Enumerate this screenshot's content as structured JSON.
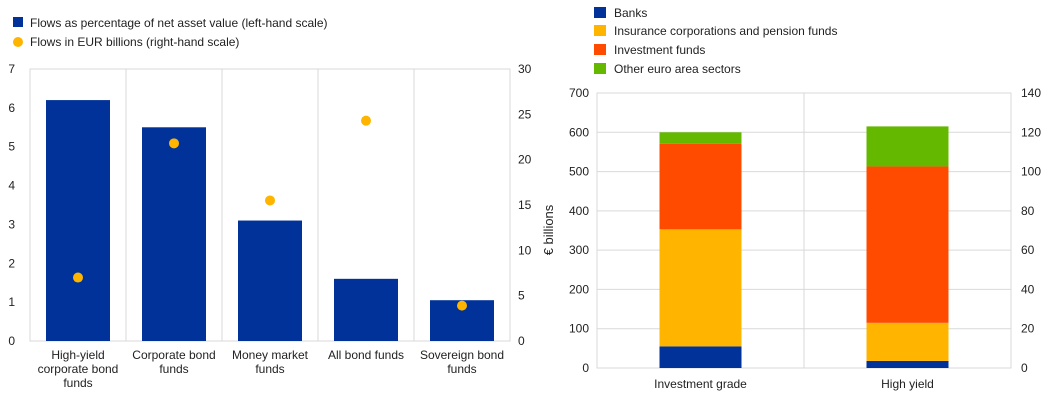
{
  "colors": {
    "navy": "#003299",
    "yellow": "#FFB400",
    "orange": "#FF4B00",
    "green": "#65B800",
    "grid": "#d9d9d9"
  },
  "chart_data": [
    {
      "type": "bar",
      "categories": [
        "High-yield corporate bond funds",
        "Corporate bond funds",
        "Money market funds",
        "All bond funds",
        "Sovereign bond funds"
      ],
      "category_lines": [
        [
          "High-yield",
          "corporate bond",
          "funds"
        ],
        [
          "Corporate bond",
          "funds"
        ],
        [
          "Money market",
          "funds"
        ],
        [
          "All bond funds"
        ],
        [
          "Sovereign bond",
          "funds"
        ]
      ],
      "series": [
        {
          "name": "Flows as percentage  of net asset value (left-hand scale)",
          "kind": "bar",
          "axis": "left",
          "color": "#003299",
          "values": [
            6.2,
            5.5,
            3.1,
            1.6,
            1.05
          ]
        },
        {
          "name": "Flows in EUR billions (right-hand scale)",
          "kind": "marker",
          "axis": "right",
          "color": "#FFB400",
          "values": [
            7.0,
            21.8,
            15.5,
            24.3,
            3.9
          ]
        }
      ],
      "ylim_left": [
        0,
        7
      ],
      "yticks_left": [
        "0",
        "1",
        "2",
        "3",
        "4",
        "5",
        "6",
        "7"
      ],
      "ylim_right": [
        0,
        30
      ],
      "yticks_right": [
        "0",
        "5",
        "10",
        "15",
        "20",
        "25",
        "30"
      ],
      "legend_position": "top-left"
    },
    {
      "type": "bar",
      "stacked": true,
      "categories": [
        "Investment grade",
        "High yield"
      ],
      "series": [
        {
          "name": "Banks",
          "color": "#003299",
          "values": [
            55,
            18
          ]
        },
        {
          "name": "Insurance corporations and pension funds",
          "color": "#FFB400",
          "values": [
            298,
            97
          ]
        },
        {
          "name": "Investment funds",
          "color": "#FF4B00",
          "values": [
            218,
            398
          ]
        },
        {
          "name": "Other euro area sectors",
          "color": "#65B800",
          "values": [
            29,
            102
          ]
        }
      ],
      "ylabel": "€ billions",
      "ylim": [
        0,
        700
      ],
      "yticks_left": [
        "0",
        "100",
        "200",
        "300",
        "400",
        "500",
        "600",
        "700"
      ],
      "ylim_right": [
        0,
        140
      ],
      "yticks_right": [
        "0",
        "20",
        "40",
        "60",
        "80",
        "100",
        "120",
        "140"
      ],
      "grid": true,
      "legend_position": "top-left"
    }
  ]
}
